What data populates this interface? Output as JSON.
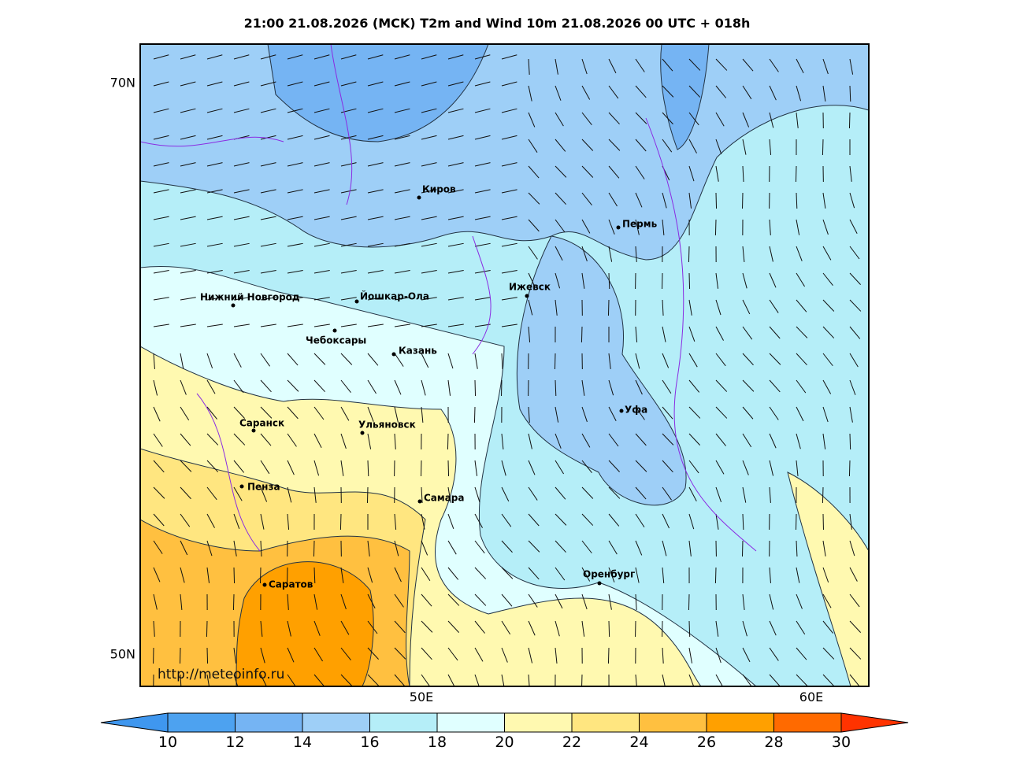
{
  "title": "21:00 21.08.2026 (MCK) T2m and Wind 10m 21.08.2026 00 UTC + 018h",
  "y_labels": [
    "70N",
    "50N"
  ],
  "x_labels": [
    "50E",
    "60E"
  ],
  "cities": [
    "Киров",
    "Пермь",
    "Нижний Новгород",
    "Йошкар-Ола",
    "Ижевск",
    "Чебоксары",
    "Казань",
    "Саранск",
    "Ульяновск",
    "Уфа",
    "Пенза",
    "Самара",
    "Саратов",
    "Оренбург"
  ],
  "url": "http://meteoinfo.ru",
  "colorbar": {
    "ticks": [
      10,
      12,
      14,
      16,
      18,
      20,
      22,
      24,
      26,
      28,
      30
    ],
    "colors": [
      "#3f97ef",
      "#4da2f0",
      "#75b4f3",
      "#9ecff7",
      "#b5eef8",
      "#e0ffff",
      "#fff9b0",
      "#ffe680",
      "#ffc040",
      "#ffa000",
      "#ff6a00",
      "#ff3300"
    ]
  }
}
